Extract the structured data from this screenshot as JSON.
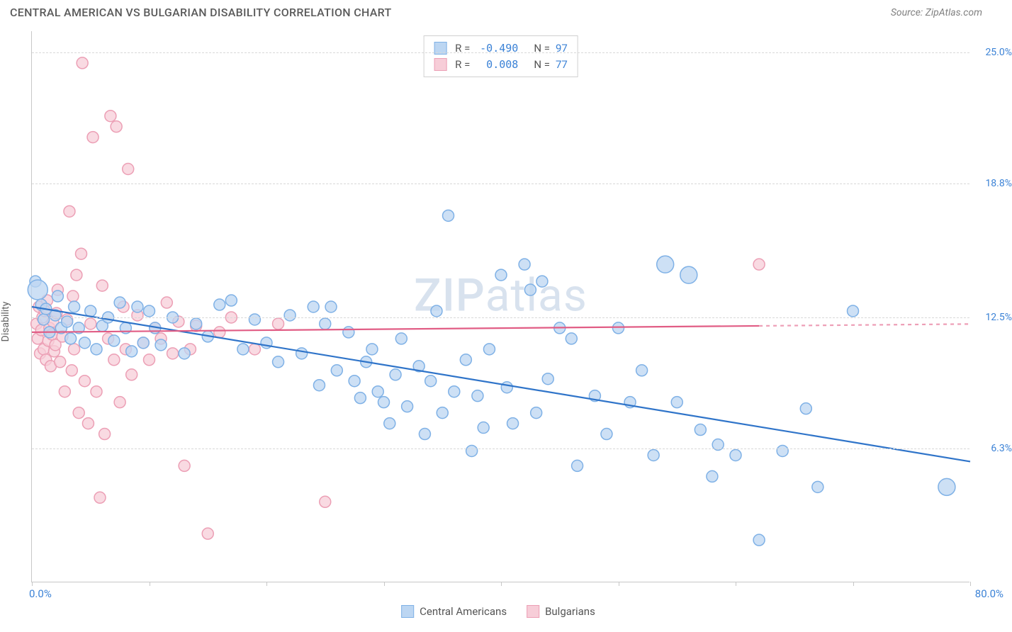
{
  "header": {
    "title": "CENTRAL AMERICAN VS BULGARIAN DISABILITY CORRELATION CHART",
    "source": "Source: ZipAtlas.com"
  },
  "watermark": {
    "part1": "ZIP",
    "part2": "atlas"
  },
  "chart": {
    "type": "scatter",
    "ylabel": "Disability",
    "xlim": [
      0,
      80
    ],
    "ylim": [
      0,
      26
    ],
    "background_color": "#ffffff",
    "grid_color": "#d8d8d8",
    "axis_color": "#c7c7c7",
    "tick_label_color": "#3b82d6",
    "yticks": [
      {
        "v": 6.3,
        "label": "6.3%"
      },
      {
        "v": 12.5,
        "label": "12.5%"
      },
      {
        "v": 18.8,
        "label": "18.8%"
      },
      {
        "v": 25.0,
        "label": "25.0%"
      }
    ],
    "xtick_positions": [
      0,
      10,
      20,
      30,
      40,
      50,
      60,
      70,
      80
    ],
    "xaxis_min_label": "0.0%",
    "xaxis_max_label": "80.0%",
    "marker_radius": 8,
    "marker_stroke_width": 1.5,
    "line_width": 2.2,
    "series": [
      {
        "id": "central_americans",
        "label": "Central Americans",
        "fill": "#bcd6f2",
        "stroke": "#7fb1e6",
        "line_color": "#2f74c9",
        "R": "-0.490",
        "N": "97",
        "trend": {
          "x1": 0,
          "y1": 13.0,
          "x2": 80,
          "y2": 5.7
        },
        "points": [
          [
            0.3,
            14.2
          ],
          [
            0.5,
            13.8,
            14
          ],
          [
            0.8,
            13.1
          ],
          [
            1.0,
            12.4
          ],
          [
            1.2,
            12.9
          ],
          [
            1.5,
            11.8
          ],
          [
            2,
            12.6
          ],
          [
            2.2,
            13.5
          ],
          [
            2.5,
            12.0
          ],
          [
            3,
            12.3
          ],
          [
            3.3,
            11.5
          ],
          [
            3.6,
            13.0
          ],
          [
            4,
            12.0
          ],
          [
            4.5,
            11.3
          ],
          [
            5,
            12.8
          ],
          [
            5.5,
            11.0
          ],
          [
            6,
            12.1
          ],
          [
            6.5,
            12.5
          ],
          [
            7,
            11.4
          ],
          [
            7.5,
            13.2
          ],
          [
            8,
            12.0
          ],
          [
            8.5,
            10.9
          ],
          [
            9,
            13.0
          ],
          [
            9.5,
            11.3
          ],
          [
            10,
            12.8
          ],
          [
            10.5,
            12.0
          ],
          [
            11,
            11.2
          ],
          [
            12,
            12.5
          ],
          [
            13,
            10.8
          ],
          [
            14,
            12.2
          ],
          [
            15,
            11.6
          ],
          [
            16,
            13.1
          ],
          [
            17,
            13.3
          ],
          [
            18,
            11.0
          ],
          [
            19,
            12.4
          ],
          [
            20,
            11.3
          ],
          [
            21,
            10.4
          ],
          [
            22,
            12.6
          ],
          [
            23,
            10.8
          ],
          [
            24,
            13.0
          ],
          [
            24.5,
            9.3
          ],
          [
            25,
            12.2
          ],
          [
            25.5,
            13.0
          ],
          [
            26,
            10.0
          ],
          [
            27,
            11.8
          ],
          [
            27.5,
            9.5
          ],
          [
            28,
            8.7
          ],
          [
            28.5,
            10.4
          ],
          [
            29,
            11.0
          ],
          [
            29.5,
            9.0
          ],
          [
            30,
            8.5
          ],
          [
            30.5,
            7.5
          ],
          [
            31,
            9.8
          ],
          [
            31.5,
            11.5
          ],
          [
            32,
            8.3
          ],
          [
            33,
            10.2
          ],
          [
            33.5,
            7.0
          ],
          [
            34,
            9.5
          ],
          [
            34.5,
            12.8
          ],
          [
            35,
            8.0
          ],
          [
            35.5,
            17.3
          ],
          [
            36,
            9.0
          ],
          [
            37,
            10.5
          ],
          [
            37.5,
            6.2
          ],
          [
            38,
            8.8
          ],
          [
            38.5,
            7.3
          ],
          [
            39,
            11.0
          ],
          [
            40,
            14.5
          ],
          [
            40.5,
            9.2
          ],
          [
            41,
            7.5
          ],
          [
            42,
            15.0
          ],
          [
            42.5,
            13.8
          ],
          [
            43,
            8.0
          ],
          [
            43.5,
            14.2
          ],
          [
            44,
            9.6
          ],
          [
            45,
            12.0
          ],
          [
            46,
            11.5
          ],
          [
            46.5,
            5.5
          ],
          [
            48,
            8.8
          ],
          [
            49,
            7.0
          ],
          [
            50,
            12.0
          ],
          [
            51,
            8.5
          ],
          [
            52,
            10.0
          ],
          [
            53,
            6.0
          ],
          [
            54,
            15.0,
            12
          ],
          [
            55,
            8.5
          ],
          [
            56,
            14.5,
            12
          ],
          [
            57,
            7.2
          ],
          [
            58,
            5.0
          ],
          [
            58.5,
            6.5
          ],
          [
            60,
            6.0
          ],
          [
            62,
            2.0
          ],
          [
            64,
            6.2
          ],
          [
            66,
            8.2
          ],
          [
            67,
            4.5
          ],
          [
            70,
            12.8
          ],
          [
            78,
            4.5,
            12
          ]
        ]
      },
      {
        "id": "bulgarians",
        "label": "Bulgarians",
        "fill": "#f7cdd8",
        "stroke": "#ec9fb5",
        "line_color": "#e15d85",
        "R": "0.008",
        "N": "77",
        "trend": {
          "x1": 0,
          "y1": 11.8,
          "x2": 62,
          "y2": 12.1,
          "x_dash_to": 80
        },
        "points": [
          [
            0.4,
            12.2
          ],
          [
            0.5,
            11.5
          ],
          [
            0.6,
            13.0
          ],
          [
            0.7,
            10.8
          ],
          [
            0.8,
            11.9
          ],
          [
            0.9,
            12.5
          ],
          [
            1.0,
            11.0
          ],
          [
            1.1,
            12.8
          ],
          [
            1.2,
            10.5
          ],
          [
            1.3,
            13.3
          ],
          [
            1.4,
            11.4
          ],
          [
            1.5,
            12.0
          ],
          [
            1.6,
            10.2
          ],
          [
            1.7,
            11.7
          ],
          [
            1.8,
            12.3
          ],
          [
            1.9,
            10.9
          ],
          [
            2.0,
            11.2
          ],
          [
            2.1,
            12.7
          ],
          [
            2.2,
            13.8
          ],
          [
            2.4,
            10.4
          ],
          [
            2.6,
            11.6
          ],
          [
            2.8,
            9.0
          ],
          [
            3.0,
            12.4
          ],
          [
            3.2,
            17.5
          ],
          [
            3.4,
            10.0
          ],
          [
            3.5,
            13.5
          ],
          [
            3.6,
            11.0
          ],
          [
            3.8,
            14.5
          ],
          [
            4.0,
            8.0
          ],
          [
            4.2,
            15.5
          ],
          [
            4.3,
            24.5
          ],
          [
            4.5,
            9.5
          ],
          [
            4.8,
            7.5
          ],
          [
            5.0,
            12.2
          ],
          [
            5.2,
            21.0
          ],
          [
            5.5,
            9.0
          ],
          [
            5.8,
            4.0
          ],
          [
            6.0,
            14.0
          ],
          [
            6.2,
            7.0
          ],
          [
            6.5,
            11.5
          ],
          [
            6.7,
            22.0
          ],
          [
            7.0,
            10.5
          ],
          [
            7.2,
            21.5
          ],
          [
            7.5,
            8.5
          ],
          [
            7.8,
            13.0
          ],
          [
            8.0,
            11.0
          ],
          [
            8.2,
            19.5
          ],
          [
            8.5,
            9.8
          ],
          [
            9.0,
            12.6
          ],
          [
            9.5,
            11.3
          ],
          [
            10,
            10.5
          ],
          [
            10.5,
            12.0
          ],
          [
            11,
            11.5
          ],
          [
            11.5,
            13.2
          ],
          [
            12,
            10.8
          ],
          [
            12.5,
            12.3
          ],
          [
            13,
            5.5
          ],
          [
            13.5,
            11.0
          ],
          [
            14,
            12.1
          ],
          [
            15,
            2.3
          ],
          [
            16,
            11.8
          ],
          [
            17,
            12.5
          ],
          [
            19,
            11.0
          ],
          [
            21,
            12.2
          ],
          [
            25,
            3.8
          ],
          [
            62,
            15.0
          ]
        ]
      }
    ]
  },
  "legend_top": {
    "r_label": "R =",
    "n_label": "N ="
  },
  "legend_bottom_labels": [
    "Central Americans",
    "Bulgarians"
  ]
}
